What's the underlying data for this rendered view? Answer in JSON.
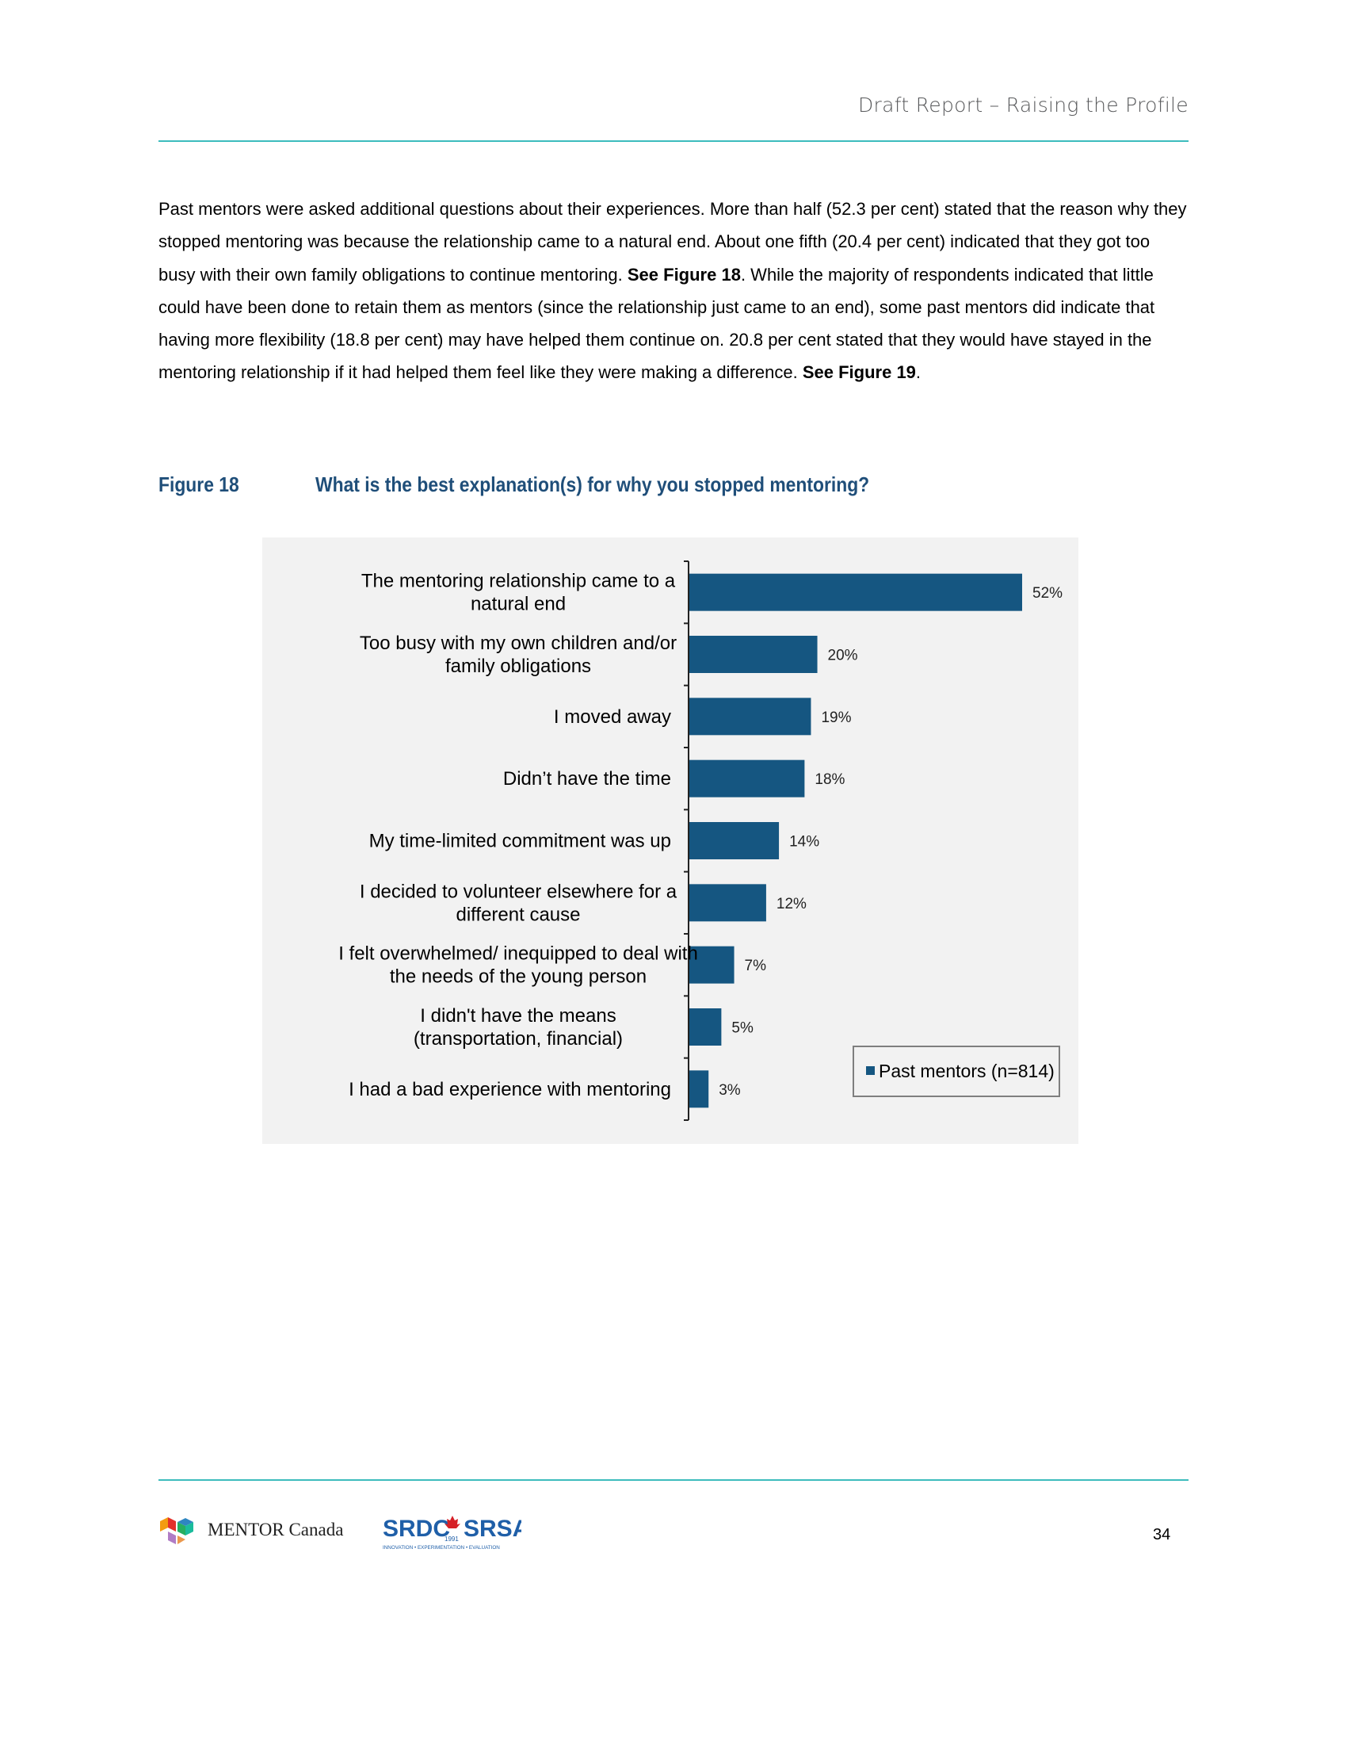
{
  "header": {
    "title": "Draft Report – Raising the Profile"
  },
  "body": {
    "segments": [
      {
        "text": "Past mentors were asked additional questions about their experiences. More than half (52.3 per cent) stated that the reason why they stopped mentoring was because the relationship came to a natural end. About one fifth (20.4 per cent) indicated that they got too busy with their own family obligations to continue mentoring. ",
        "bold": false
      },
      {
        "text": "See Figure 18",
        "bold": true
      },
      {
        "text": ". While the majority of respondents indicated that little could have been done to retain them as mentors (since the relationship just came to an end), some past mentors did indicate that having more flexibility (18.8 per cent) may have helped them continue on. 20.8 per cent stated that they would have stayed in the mentoring relationship if it had helped them feel like they were making a difference. ",
        "bold": false
      },
      {
        "text": "See Figure 19",
        "bold": true
      },
      {
        "text": ".",
        "bold": false
      }
    ]
  },
  "figure": {
    "number": "Figure 18",
    "title": "What is the best explanation(s) for why you stopped mentoring?"
  },
  "chart_data": {
    "type": "bar",
    "orientation": "horizontal",
    "categories": [
      [
        "The mentoring relationship came to a",
        "natural end"
      ],
      [
        "Too busy with my own children and/or",
        "family obligations"
      ],
      [
        "I moved away"
      ],
      [
        "Didn’t have the time"
      ],
      [
        "My time-limited commitment was up"
      ],
      [
        "I decided to volunteer elsewhere for a",
        "different cause"
      ],
      [
        "I felt overwhelmed/ inequipped to deal with",
        "the needs of the young person"
      ],
      [
        "I didn't have the means",
        "(transportation, financial)"
      ],
      [
        "I had a bad experience with mentoring"
      ]
    ],
    "series": [
      {
        "name": "Past mentors (n=814)",
        "values": [
          52,
          20,
          19,
          18,
          14,
          12,
          7,
          5,
          3
        ],
        "labels": [
          "52%",
          "20%",
          "19%",
          "18%",
          "14%",
          "12%",
          "7%",
          "5%",
          "3%"
        ],
        "color": "#155681"
      }
    ],
    "legend": {
      "position": "bottom-right"
    },
    "background": "#f2f2f2"
  },
  "footer": {
    "mentor_logo_text": "MENTOR Canada",
    "srdc_left": "SRDC",
    "srdc_right": "SRSA",
    "srdc_year": "1991",
    "srdc_tagline": "INNOVATION • EXPERIMENTATION • EVALUATION",
    "page_number": "34"
  }
}
